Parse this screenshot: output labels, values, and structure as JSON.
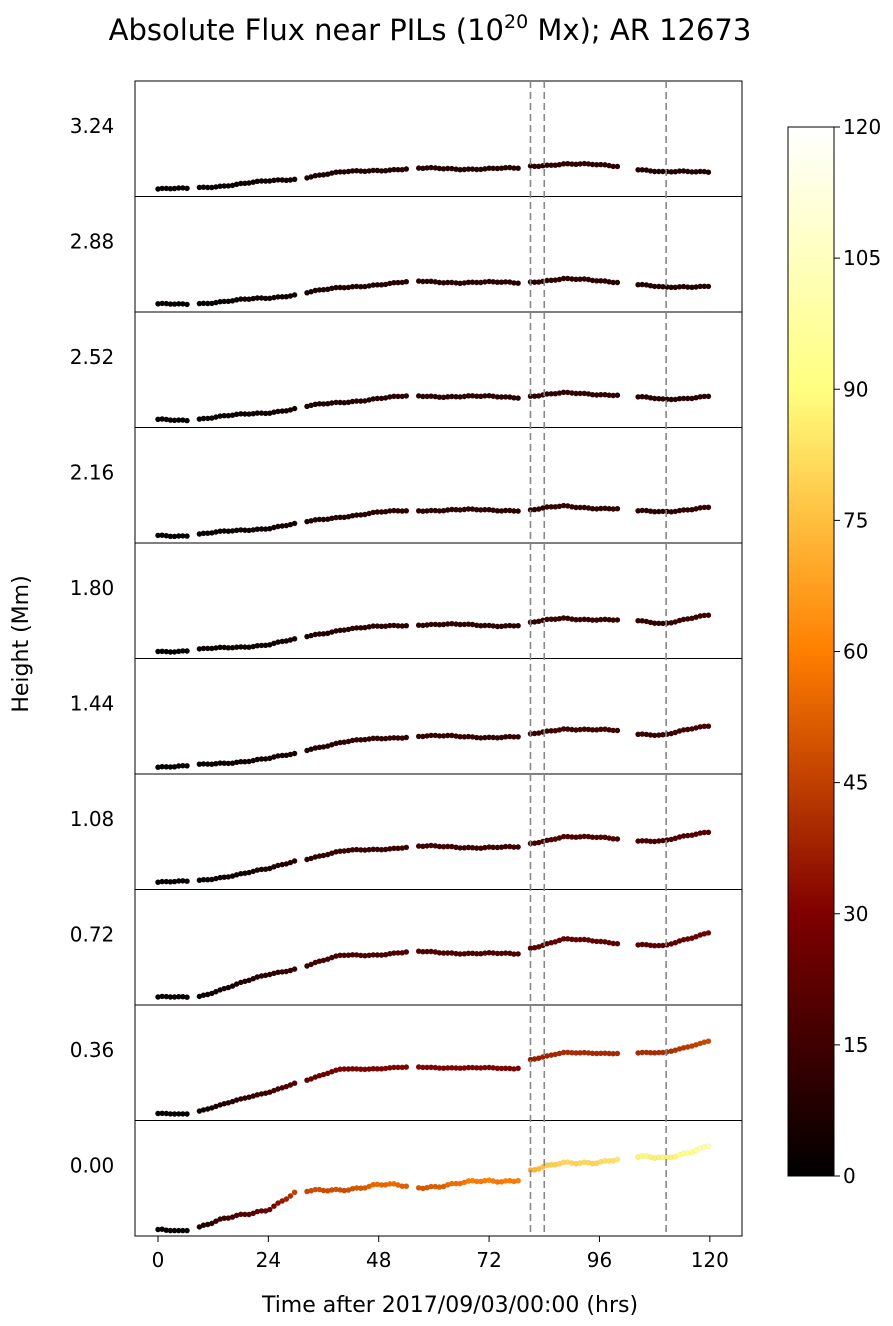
{
  "chart_data": {
    "type": "scatter",
    "title_main": "Absolute Flux near PILs (10",
    "title_sup": "20",
    "title_tail": " Mx); AR 12673",
    "xlabel": "Time after 2017/09/03/00:00 (hrs)",
    "ylabel": "Height (Mm)",
    "xticks": [
      0,
      24,
      48,
      72,
      96,
      120
    ],
    "xlim": [
      -5,
      127
    ],
    "colorbar": {
      "colormap": "afmhot",
      "ticks": [
        0,
        15,
        30,
        45,
        60,
        75,
        90,
        105,
        120
      ],
      "range": [
        0,
        120
      ]
    },
    "event_lines_x": [
      81,
      84,
      110.5
    ],
    "panels": [
      {
        "height_label": "3.24",
        "ylim": [
          0,
          40
        ],
        "data": [
          [
            0,
            1
          ],
          [
            6,
            1
          ],
          [
            9,
            1.5
          ],
          [
            24,
            4
          ],
          [
            30,
            5
          ],
          [
            33,
            6
          ],
          [
            40,
            7.5
          ],
          [
            48,
            8.5
          ],
          [
            56,
            9
          ],
          [
            78,
            9
          ],
          [
            81,
            10
          ],
          [
            88,
            11
          ],
          [
            100,
            10
          ],
          [
            104,
            9
          ],
          [
            110,
            7.5
          ],
          [
            120,
            8
          ]
        ]
      },
      {
        "height_label": "2.88",
        "ylim": [
          0,
          40
        ],
        "data": [
          [
            0,
            1
          ],
          [
            6,
            1
          ],
          [
            9,
            1.5
          ],
          [
            24,
            3.5
          ],
          [
            30,
            5
          ],
          [
            33,
            6
          ],
          [
            40,
            7.5
          ],
          [
            48,
            9
          ],
          [
            56,
            10
          ],
          [
            78,
            9.5
          ],
          [
            81,
            10
          ],
          [
            88,
            11
          ],
          [
            100,
            10
          ],
          [
            104,
            9
          ],
          [
            110,
            7.5
          ],
          [
            120,
            8.5
          ]
        ]
      },
      {
        "height_label": "2.52",
        "ylim": [
          0,
          40
        ],
        "data": [
          [
            0,
            1
          ],
          [
            6,
            1
          ],
          [
            9,
            1.5
          ],
          [
            24,
            4
          ],
          [
            30,
            5.5
          ],
          [
            33,
            6.5
          ],
          [
            40,
            8
          ],
          [
            48,
            9.5
          ],
          [
            56,
            10.5
          ],
          [
            78,
            10
          ],
          [
            81,
            10.5
          ],
          [
            88,
            11.5
          ],
          [
            100,
            11
          ],
          [
            104,
            10
          ],
          [
            110,
            9
          ],
          [
            120,
            10.5
          ]
        ]
      },
      {
        "height_label": "2.16",
        "ylim": [
          0,
          40
        ],
        "data": [
          [
            0,
            1
          ],
          [
            6,
            1
          ],
          [
            9,
            1.5
          ],
          [
            24,
            4
          ],
          [
            30,
            5.5
          ],
          [
            33,
            6.5
          ],
          [
            40,
            8.5
          ],
          [
            48,
            10
          ],
          [
            56,
            11
          ],
          [
            78,
            11
          ],
          [
            81,
            11
          ],
          [
            88,
            12.5
          ],
          [
            100,
            11.5
          ],
          [
            104,
            10.5
          ],
          [
            110,
            10.5
          ],
          [
            120,
            12
          ]
        ]
      },
      {
        "height_label": "1.80",
        "ylim": [
          0,
          40
        ],
        "data": [
          [
            0,
            1
          ],
          [
            6,
            1
          ],
          [
            9,
            1.5
          ],
          [
            24,
            3.5
          ],
          [
            30,
            5.5
          ],
          [
            33,
            7
          ],
          [
            40,
            9.5
          ],
          [
            48,
            10.5
          ],
          [
            56,
            11.5
          ],
          [
            78,
            11
          ],
          [
            81,
            12
          ],
          [
            88,
            14
          ],
          [
            100,
            13
          ],
          [
            104,
            13
          ],
          [
            110,
            12
          ],
          [
            120,
            15
          ]
        ]
      },
      {
        "height_label": "1.44",
        "ylim": [
          0,
          40
        ],
        "data": [
          [
            0,
            1
          ],
          [
            6,
            1
          ],
          [
            9,
            1.5
          ],
          [
            24,
            4
          ],
          [
            30,
            6
          ],
          [
            33,
            8
          ],
          [
            40,
            10.5
          ],
          [
            48,
            12
          ],
          [
            56,
            13
          ],
          [
            78,
            12.5
          ],
          [
            81,
            13.5
          ],
          [
            88,
            16
          ],
          [
            100,
            15
          ],
          [
            104,
            14
          ],
          [
            110,
            13.5
          ],
          [
            120,
            17
          ]
        ]
      },
      {
        "height_label": "1.08",
        "ylim": [
          0,
          40
        ],
        "data": [
          [
            0,
            1
          ],
          [
            6,
            1
          ],
          [
            9,
            1.5
          ],
          [
            24,
            6
          ],
          [
            30,
            9.5
          ],
          [
            33,
            10.5
          ],
          [
            40,
            13
          ],
          [
            48,
            14
          ],
          [
            56,
            15
          ],
          [
            78,
            14.5
          ],
          [
            81,
            16
          ],
          [
            88,
            19
          ],
          [
            100,
            18
          ],
          [
            104,
            17.5
          ],
          [
            110,
            17
          ],
          [
            120,
            21
          ]
        ]
      },
      {
        "height_label": "0.72",
        "ylim": [
          0,
          40
        ],
        "data": [
          [
            0,
            1
          ],
          [
            6,
            1
          ],
          [
            9,
            1.5
          ],
          [
            24,
            10
          ],
          [
            30,
            12.5
          ],
          [
            33,
            14
          ],
          [
            40,
            17.5
          ],
          [
            48,
            18
          ],
          [
            56,
            19
          ],
          [
            78,
            18
          ],
          [
            81,
            20.5
          ],
          [
            88,
            24
          ],
          [
            100,
            22.5
          ],
          [
            104,
            22
          ],
          [
            110,
            21
          ],
          [
            120,
            27
          ]
        ]
      },
      {
        "height_label": "0.36",
        "ylim": [
          0,
          65
        ],
        "data": [
          [
            0,
            1
          ],
          [
            6,
            1
          ],
          [
            9,
            3
          ],
          [
            24,
            15
          ],
          [
            30,
            21
          ],
          [
            33,
            23
          ],
          [
            40,
            30
          ],
          [
            48,
            30
          ],
          [
            56,
            31
          ],
          [
            78,
            30
          ],
          [
            81,
            36
          ],
          [
            88,
            40
          ],
          [
            100,
            40
          ],
          [
            104,
            40
          ],
          [
            110,
            40
          ],
          [
            120,
            48
          ]
        ]
      },
      {
        "height_label": "0.00",
        "ylim": [
          0,
          120
        ],
        "data": [
          [
            0,
            1
          ],
          [
            6,
            1
          ],
          [
            9,
            5
          ],
          [
            24,
            27
          ],
          [
            30,
            45
          ],
          [
            33,
            46
          ],
          [
            40,
            50
          ],
          [
            48,
            54
          ],
          [
            56,
            52
          ],
          [
            78,
            61
          ],
          [
            81,
            72
          ],
          [
            88,
            79
          ],
          [
            100,
            85
          ],
          [
            104,
            86
          ],
          [
            110,
            87
          ],
          [
            120,
            100
          ]
        ]
      }
    ]
  }
}
